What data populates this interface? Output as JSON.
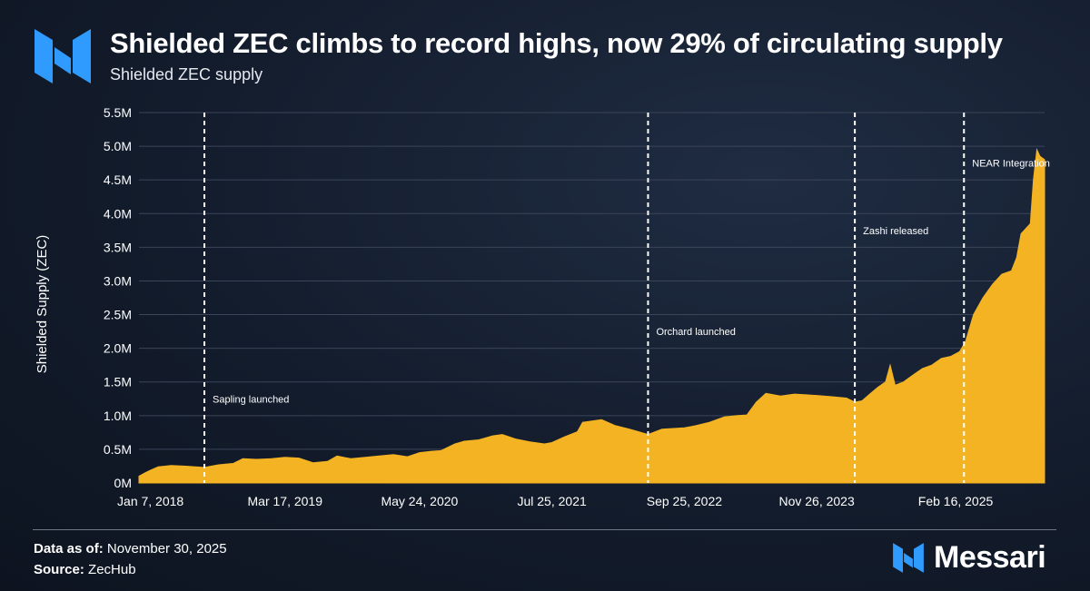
{
  "header": {
    "title": "Shielded ZEC climbs to record highs, now 29% of circulating supply",
    "subtitle": "Shielded ZEC supply"
  },
  "footer": {
    "data_as_of_label": "Data as of:",
    "data_as_of_value": "November 30, 2025",
    "source_label": "Source:",
    "source_value": "ZecHub",
    "brand_name": "Messari"
  },
  "colors": {
    "area": "#f3b323",
    "grid": "#3b4558",
    "annotation": "#ffffff",
    "background": "#131c2c",
    "brand": "#2f9bff"
  },
  "icons": [
    "messari-logo-icon"
  ],
  "chart_data": {
    "type": "area",
    "title": "Shielded ZEC climbs to record highs, now 29% of circulating supply",
    "subtitle": "Shielded ZEC supply",
    "xlabel": "",
    "ylabel": "Shielded Supply (ZEC)",
    "xlim": [
      "2017-12-01",
      "2025-11-30"
    ],
    "ylim": [
      0,
      5500000
    ],
    "y_ticks": [
      {
        "value": 0,
        "label": "0M"
      },
      {
        "value": 500000,
        "label": "0.5M"
      },
      {
        "value": 1000000,
        "label": "1.0M"
      },
      {
        "value": 1500000,
        "label": "1.5M"
      },
      {
        "value": 2000000,
        "label": "2.0M"
      },
      {
        "value": 2500000,
        "label": "2.5M"
      },
      {
        "value": 3000000,
        "label": "3.0M"
      },
      {
        "value": 3500000,
        "label": "3.5M"
      },
      {
        "value": 4000000,
        "label": "4.0M"
      },
      {
        "value": 4500000,
        "label": "4.5M"
      },
      {
        "value": 5000000,
        "label": "5.0M"
      },
      {
        "value": 5500000,
        "label": "5.5M"
      }
    ],
    "x_ticks": [
      {
        "date": "2018-01-07",
        "label": "Jan 7, 2018"
      },
      {
        "date": "2019-03-17",
        "label": "Mar 17, 2019"
      },
      {
        "date": "2020-05-24",
        "label": "May 24, 2020"
      },
      {
        "date": "2021-07-25",
        "label": "Jul 25, 2021"
      },
      {
        "date": "2022-09-25",
        "label": "Sep 25, 2022"
      },
      {
        "date": "2023-11-26",
        "label": "Nov 26, 2023"
      },
      {
        "date": "2025-02-16",
        "label": "Feb 16, 2025"
      }
    ],
    "grid": true,
    "legend": "none",
    "annotations": [
      {
        "date": "2018-06-30",
        "label": "Sapling launched",
        "label_value": 1250000
      },
      {
        "date": "2022-05-31",
        "label": "Orchard launched",
        "label_value": 2250000
      },
      {
        "date": "2024-03-28",
        "label": "Zashi released",
        "label_value": 3750000
      },
      {
        "date": "2025-03-15",
        "label": "NEAR Integration",
        "label_value": 4750000
      }
    ],
    "series": [
      {
        "points": [
          [
            "2017-12-01",
            100000
          ],
          [
            "2017-12-20",
            150000
          ],
          [
            "2018-01-07",
            190000
          ],
          [
            "2018-02-01",
            240000
          ],
          [
            "2018-03-15",
            260000
          ],
          [
            "2018-05-01",
            250000
          ],
          [
            "2018-06-30",
            230000
          ],
          [
            "2018-08-15",
            270000
          ],
          [
            "2018-10-01",
            290000
          ],
          [
            "2018-11-01",
            360000
          ],
          [
            "2018-12-15",
            350000
          ],
          [
            "2019-02-01",
            360000
          ],
          [
            "2019-03-17",
            380000
          ],
          [
            "2019-05-01",
            370000
          ],
          [
            "2019-06-15",
            300000
          ],
          [
            "2019-08-01",
            320000
          ],
          [
            "2019-09-01",
            400000
          ],
          [
            "2019-10-15",
            360000
          ],
          [
            "2019-12-01",
            380000
          ],
          [
            "2020-01-15",
            400000
          ],
          [
            "2020-03-01",
            420000
          ],
          [
            "2020-04-15",
            390000
          ],
          [
            "2020-05-24",
            450000
          ],
          [
            "2020-07-01",
            470000
          ],
          [
            "2020-08-01",
            480000
          ],
          [
            "2020-09-15",
            580000
          ],
          [
            "2020-10-15",
            620000
          ],
          [
            "2020-12-01",
            640000
          ],
          [
            "2021-01-15",
            700000
          ],
          [
            "2021-02-15",
            720000
          ],
          [
            "2021-04-01",
            650000
          ],
          [
            "2021-05-15",
            610000
          ],
          [
            "2021-07-01",
            580000
          ],
          [
            "2021-07-25",
            600000
          ],
          [
            "2021-09-01",
            680000
          ],
          [
            "2021-10-15",
            760000
          ],
          [
            "2021-11-01",
            900000
          ],
          [
            "2021-12-01",
            920000
          ],
          [
            "2022-01-01",
            940000
          ],
          [
            "2022-02-15",
            850000
          ],
          [
            "2022-04-01",
            800000
          ],
          [
            "2022-05-01",
            760000
          ],
          [
            "2022-05-31",
            720000
          ],
          [
            "2022-07-15",
            800000
          ],
          [
            "2022-09-25",
            820000
          ],
          [
            "2022-11-01",
            850000
          ],
          [
            "2022-12-15",
            900000
          ],
          [
            "2023-02-01",
            980000
          ],
          [
            "2023-03-15",
            1000000
          ],
          [
            "2023-04-15",
            1010000
          ],
          [
            "2023-05-15",
            1200000
          ],
          [
            "2023-06-15",
            1330000
          ],
          [
            "2023-08-01",
            1290000
          ],
          [
            "2023-09-15",
            1320000
          ],
          [
            "2023-11-26",
            1300000
          ],
          [
            "2024-01-15",
            1280000
          ],
          [
            "2024-03-01",
            1260000
          ],
          [
            "2024-03-28",
            1200000
          ],
          [
            "2024-04-20",
            1220000
          ],
          [
            "2024-05-15",
            1320000
          ],
          [
            "2024-06-10",
            1420000
          ],
          [
            "2024-07-05",
            1500000
          ],
          [
            "2024-07-20",
            1750000
          ],
          [
            "2024-08-05",
            1450000
          ],
          [
            "2024-09-01",
            1500000
          ],
          [
            "2024-10-01",
            1600000
          ],
          [
            "2024-11-01",
            1700000
          ],
          [
            "2024-12-01",
            1750000
          ],
          [
            "2025-01-01",
            1850000
          ],
          [
            "2025-02-01",
            1880000
          ],
          [
            "2025-03-01",
            1950000
          ],
          [
            "2025-03-20",
            2100000
          ],
          [
            "2025-04-15",
            2500000
          ],
          [
            "2025-05-15",
            2750000
          ],
          [
            "2025-06-15",
            2950000
          ],
          [
            "2025-07-15",
            3100000
          ],
          [
            "2025-08-15",
            3150000
          ],
          [
            "2025-09-01",
            3350000
          ],
          [
            "2025-09-15",
            3700000
          ],
          [
            "2025-10-01",
            3780000
          ],
          [
            "2025-10-15",
            3850000
          ],
          [
            "2025-10-25",
            4500000
          ],
          [
            "2025-11-05",
            4950000
          ],
          [
            "2025-11-15",
            4850000
          ],
          [
            "2025-11-30",
            4800000
          ]
        ]
      }
    ]
  }
}
